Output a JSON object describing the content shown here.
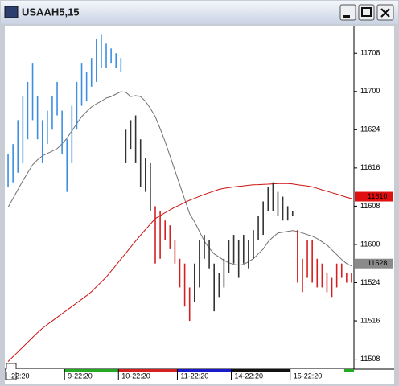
{
  "title": "USAAH5,15",
  "chart_data": {
    "type": "bar-range",
    "categories": [
      "-22:20",
      null,
      null,
      null,
      null,
      null,
      null,
      null,
      null,
      null,
      null,
      null,
      "9-22:20",
      null,
      null,
      null,
      null,
      null,
      null,
      null,
      null,
      null,
      null,
      "10-22:20",
      null,
      null,
      null,
      null,
      null,
      null,
      null,
      null,
      null,
      null,
      null,
      "11-22:20",
      null,
      null,
      null,
      null,
      null,
      null,
      null,
      null,
      null,
      null,
      "14-22:20",
      null,
      null,
      null,
      null,
      null,
      null,
      null,
      null,
      null,
      null,
      null,
      "15-22:20",
      null,
      null,
      null,
      null,
      null,
      null,
      null,
      null,
      null,
      null,
      null,
      null
    ],
    "bars": {
      "high": [
        116.59375,
        116.65625,
        116.8125,
        116.96875,
        117.0625,
        117.1875,
        116.96875,
        116.8125,
        116.875,
        116.96875,
        117.0625,
        116.875,
        116.6875,
        116.90625,
        117.0625,
        117.1875,
        117.125,
        117.21875,
        117.34375,
        117.375,
        117.3125,
        117.28125,
        117.25,
        117.21875,
        116.75,
        116.8125,
        116.84375,
        116.6875,
        116.5625,
        116.53125,
        116.25,
        116.21875,
        116.15625,
        116.125,
        116.03125,
        115.90625,
        115.875,
        115.71875,
        115.875,
        116.03125,
        116.0625,
        116.03125,
        115.875,
        115.8125,
        115.90625,
        116.03125,
        116.0625,
        116.03125,
        116.0625,
        116.03125,
        116.09375,
        116.1875,
        116.28125,
        116.375,
        116.40625,
        116.34375,
        116.3125,
        116.25,
        116.21875,
        116.09375,
        115.90625,
        116.03125,
        116.03125,
        115.90625,
        115.875,
        115.8125,
        115.78125,
        115.875,
        115.875,
        115.8125,
        115.8125
      ],
      "low": [
        116.375,
        116.40625,
        116.46875,
        116.53125,
        116.6875,
        116.8125,
        116.6875,
        116.53125,
        116.65625,
        116.75,
        116.84375,
        116.59375,
        116.34375,
        116.53125,
        116.75,
        116.90625,
        116.9375,
        117.03125,
        117.0625,
        117.15625,
        117.15625,
        117.1875,
        117.15625,
        117.125,
        116.53125,
        116.625,
        116.53125,
        116.375,
        116.34375,
        116.21875,
        115.875,
        115.90625,
        116.03125,
        115.96875,
        115.875,
        115.71875,
        115.59375,
        115.5,
        115.625,
        115.71875,
        115.90625,
        115.84375,
        115.5625,
        115.65625,
        115.71875,
        115.8125,
        115.875,
        115.78125,
        115.875,
        115.84375,
        115.90625,
        116.03125,
        116.0625,
        116.21875,
        116.21875,
        116.1875,
        116.15625,
        116.15625,
        116.1875,
        115.75,
        115.6875,
        115.78125,
        115.75,
        115.71875,
        115.71875,
        115.6875,
        115.65625,
        115.71875,
        115.78125,
        115.75,
        115.75
      ],
      "colors": [
        "#3d8ee0",
        "#3d8ee0",
        "#3d8ee0",
        "#3d8ee0",
        "#3d8ee0",
        "#3d8ee0",
        "#3d8ee0",
        "#3d8ee0",
        "#3d8ee0",
        "#3d8ee0",
        "#3d8ee0",
        "#3d8ee0",
        "#3d8ee0",
        "#3d8ee0",
        "#3d8ee0",
        "#3d8ee0",
        "#3d8ee0",
        "#3d8ee0",
        "#3d8ee0",
        "#3d8ee0",
        "#3d8ee0",
        "#3d8ee0",
        "#3d8ee0",
        "#3d8ee0",
        "#333333",
        "#333333",
        "#333333",
        "#333333",
        "#333333",
        "#333333",
        "#d42020",
        "#d42020",
        "#d42020",
        "#d42020",
        "#d42020",
        "#d42020",
        "#d42020",
        "#d42020",
        "#333333",
        "#333333",
        "#333333",
        "#333333",
        "#333333",
        "#333333",
        "#333333",
        "#333333",
        "#333333",
        "#333333",
        "#333333",
        "#333333",
        "#333333",
        "#333333",
        "#333333",
        "#333333",
        "#333333",
        "#333333",
        "#333333",
        "#333333",
        "#333333",
        "#d42020",
        "#d42020",
        "#d42020",
        "#d42020",
        "#d42020",
        "#d42020",
        "#d42020",
        "#d42020",
        "#d42020",
        "#d42020",
        "#d42020",
        "#d42020"
      ]
    },
    "lines": [
      {
        "color": "#707070",
        "values": [
          116.243,
          116.3,
          116.358,
          116.416,
          116.468,
          116.521,
          116.553,
          116.579,
          116.595,
          116.61,
          116.626,
          116.658,
          116.694,
          116.742,
          116.789,
          116.836,
          116.868,
          116.899,
          116.92,
          116.936,
          116.957,
          116.967,
          116.983,
          116.999,
          116.994,
          116.967,
          116.973,
          116.967,
          116.936,
          116.889,
          116.836,
          116.757,
          116.673,
          116.579,
          116.484,
          116.39,
          116.295,
          116.201,
          116.148,
          116.085,
          116.022,
          115.975,
          115.938,
          115.917,
          115.896,
          115.88,
          115.87,
          115.864,
          115.87,
          115.886,
          115.907,
          115.938,
          115.97,
          116.017,
          116.048,
          116.075,
          116.08,
          116.085,
          116.09,
          116.085,
          116.075,
          116.064,
          116.054,
          116.038,
          116.017,
          115.996,
          115.964,
          115.933,
          115.901,
          115.875,
          115.859
        ]
      },
      {
        "color": "#cc1010",
        "values": [
          115.234,
          115.266,
          115.297,
          115.329,
          115.36,
          115.392,
          115.423,
          115.452,
          115.476,
          115.499,
          115.523,
          115.547,
          115.57,
          115.594,
          115.618,
          115.641,
          115.665,
          115.691,
          115.723,
          115.754,
          115.786,
          115.825,
          115.864,
          115.904,
          115.943,
          115.983,
          116.022,
          116.06,
          116.097,
          116.133,
          116.169,
          116.188,
          116.207,
          116.226,
          116.243,
          116.258,
          116.274,
          116.289,
          116.301,
          116.314,
          116.327,
          116.338,
          116.349,
          116.36,
          116.367,
          116.371,
          116.376,
          116.38,
          116.383,
          116.387,
          116.39,
          116.391,
          116.393,
          116.394,
          116.396,
          116.398,
          116.399,
          116.398,
          116.395,
          116.39,
          116.386,
          116.382,
          116.376,
          116.367,
          116.357,
          116.348,
          116.338,
          116.329,
          116.319,
          116.308,
          116.3
        ]
      }
    ],
    "ylim": [
      115.19,
      117.43
    ],
    "yticks": [
      {
        "value": 117.25,
        "label": "11708"
      },
      {
        "value": 117.0,
        "label": "11700"
      },
      {
        "value": 116.75,
        "label": "11624"
      },
      {
        "value": 116.5,
        "label": "11616"
      },
      {
        "value": 116.25,
        "label": "11608"
      },
      {
        "value": 116.0,
        "label": "11600"
      },
      {
        "value": 115.75,
        "label": "11524"
      },
      {
        "value": 115.5,
        "label": "11516"
      },
      {
        "value": 115.25,
        "label": "11508"
      }
    ],
    "price_markers": [
      {
        "value": 116.3125,
        "label": "11610",
        "color": "#e01010"
      },
      {
        "value": 115.875,
        "label": "11528",
        "color": "#8a8a8a"
      }
    ]
  }
}
